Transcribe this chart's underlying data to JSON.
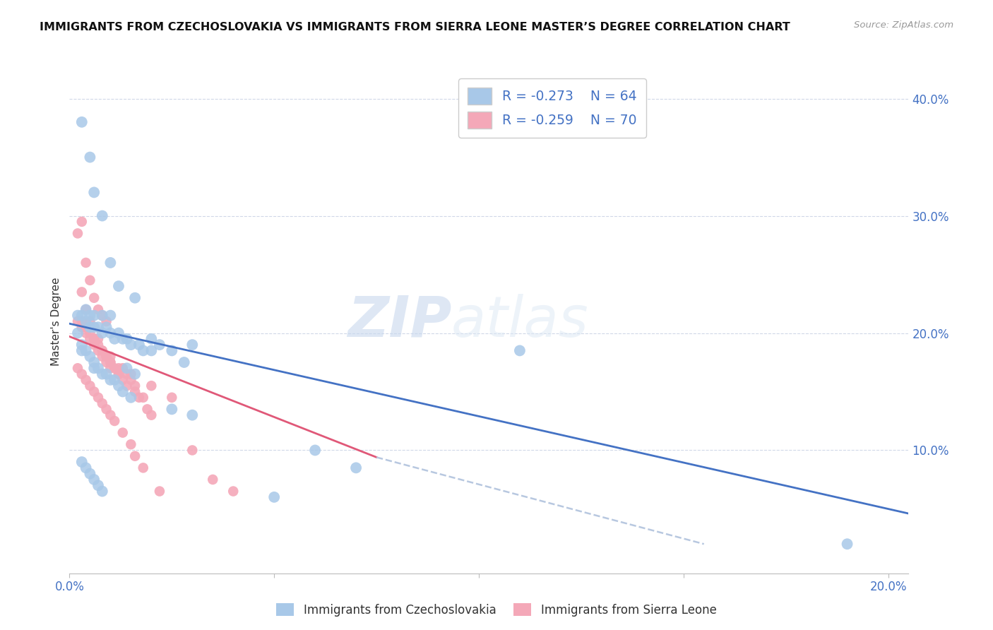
{
  "title": "IMMIGRANTS FROM CZECHOSLOVAKIA VS IMMIGRANTS FROM SIERRA LEONE MASTER’S DEGREE CORRELATION CHART",
  "source": "Source: ZipAtlas.com",
  "ylabel": "Master's Degree",
  "right_yticks": [
    "40.0%",
    "30.0%",
    "20.0%",
    "10.0%"
  ],
  "right_ytick_vals": [
    0.4,
    0.3,
    0.2,
    0.1
  ],
  "xlim": [
    0.0,
    0.205
  ],
  "ylim": [
    -0.005,
    0.425
  ],
  "legend_r1": "R = -0.273",
  "legend_n1": "N = 64",
  "legend_r2": "R = -0.259",
  "legend_n2": "N = 70",
  "color_blue": "#a8c8e8",
  "color_pink": "#f4a8b8",
  "color_blue_line": "#4472c4",
  "color_pink_line": "#e05878",
  "color_dashed": "#b8c8e0",
  "color_axis_text": "#4472c4",
  "color_grid": "#d0d8e8",
  "color_title": "#111111",
  "watermark_zip": "ZIP",
  "watermark_atlas": "atlas",
  "blue_scatter_x": [
    0.003,
    0.005,
    0.006,
    0.008,
    0.01,
    0.012,
    0.014,
    0.016,
    0.002,
    0.003,
    0.004,
    0.004,
    0.005,
    0.005,
    0.006,
    0.006,
    0.007,
    0.008,
    0.008,
    0.009,
    0.01,
    0.01,
    0.011,
    0.012,
    0.013,
    0.014,
    0.015,
    0.016,
    0.017,
    0.018,
    0.02,
    0.022,
    0.025,
    0.028,
    0.03,
    0.002,
    0.003,
    0.003,
    0.004,
    0.005,
    0.006,
    0.006,
    0.007,
    0.008,
    0.009,
    0.01,
    0.011,
    0.012,
    0.013,
    0.015,
    0.02,
    0.025,
    0.03,
    0.06,
    0.07,
    0.003,
    0.004,
    0.005,
    0.006,
    0.007,
    0.008,
    0.19,
    0.11,
    0.05
  ],
  "blue_scatter_y": [
    0.38,
    0.35,
    0.32,
    0.3,
    0.26,
    0.24,
    0.17,
    0.165,
    0.215,
    0.215,
    0.21,
    0.22,
    0.215,
    0.205,
    0.215,
    0.205,
    0.205,
    0.215,
    0.2,
    0.205,
    0.215,
    0.2,
    0.195,
    0.2,
    0.195,
    0.195,
    0.19,
    0.23,
    0.19,
    0.185,
    0.185,
    0.19,
    0.185,
    0.175,
    0.19,
    0.2,
    0.19,
    0.185,
    0.185,
    0.18,
    0.175,
    0.17,
    0.17,
    0.165,
    0.165,
    0.16,
    0.16,
    0.155,
    0.15,
    0.145,
    0.195,
    0.135,
    0.13,
    0.1,
    0.085,
    0.09,
    0.085,
    0.08,
    0.075,
    0.07,
    0.065,
    0.02,
    0.185,
    0.06
  ],
  "pink_scatter_x": [
    0.002,
    0.003,
    0.004,
    0.005,
    0.006,
    0.007,
    0.008,
    0.009,
    0.01,
    0.002,
    0.003,
    0.003,
    0.004,
    0.004,
    0.005,
    0.005,
    0.006,
    0.006,
    0.007,
    0.007,
    0.008,
    0.008,
    0.009,
    0.009,
    0.01,
    0.01,
    0.011,
    0.012,
    0.012,
    0.013,
    0.013,
    0.014,
    0.015,
    0.015,
    0.016,
    0.017,
    0.018,
    0.019,
    0.02,
    0.003,
    0.004,
    0.005,
    0.006,
    0.007,
    0.008,
    0.009,
    0.01,
    0.012,
    0.014,
    0.016,
    0.02,
    0.025,
    0.03,
    0.035,
    0.04,
    0.002,
    0.003,
    0.004,
    0.005,
    0.006,
    0.007,
    0.008,
    0.009,
    0.01,
    0.011,
    0.013,
    0.015,
    0.016,
    0.018,
    0.022
  ],
  "pink_scatter_y": [
    0.285,
    0.235,
    0.22,
    0.21,
    0.195,
    0.19,
    0.185,
    0.18,
    0.175,
    0.21,
    0.21,
    0.205,
    0.205,
    0.2,
    0.2,
    0.195,
    0.195,
    0.19,
    0.195,
    0.185,
    0.185,
    0.18,
    0.18,
    0.175,
    0.18,
    0.175,
    0.17,
    0.17,
    0.165,
    0.16,
    0.17,
    0.165,
    0.165,
    0.16,
    0.155,
    0.145,
    0.145,
    0.135,
    0.13,
    0.295,
    0.26,
    0.245,
    0.23,
    0.22,
    0.215,
    0.21,
    0.17,
    0.165,
    0.155,
    0.15,
    0.155,
    0.145,
    0.1,
    0.075,
    0.065,
    0.17,
    0.165,
    0.16,
    0.155,
    0.15,
    0.145,
    0.14,
    0.135,
    0.13,
    0.125,
    0.115,
    0.105,
    0.095,
    0.085,
    0.065
  ],
  "blue_line_x": [
    0.0,
    0.205
  ],
  "blue_line_y": [
    0.208,
    0.046
  ],
  "pink_line_x": [
    0.0,
    0.075
  ],
  "pink_line_y": [
    0.197,
    0.094
  ],
  "dashed_line_x": [
    0.075,
    0.155
  ],
  "dashed_line_y": [
    0.094,
    0.02
  ],
  "xtick_positions": [
    0.0,
    0.05,
    0.1,
    0.15,
    0.2
  ],
  "xtick_labels": [
    "0.0%",
    "",
    "",
    "",
    "20.0%"
  ]
}
